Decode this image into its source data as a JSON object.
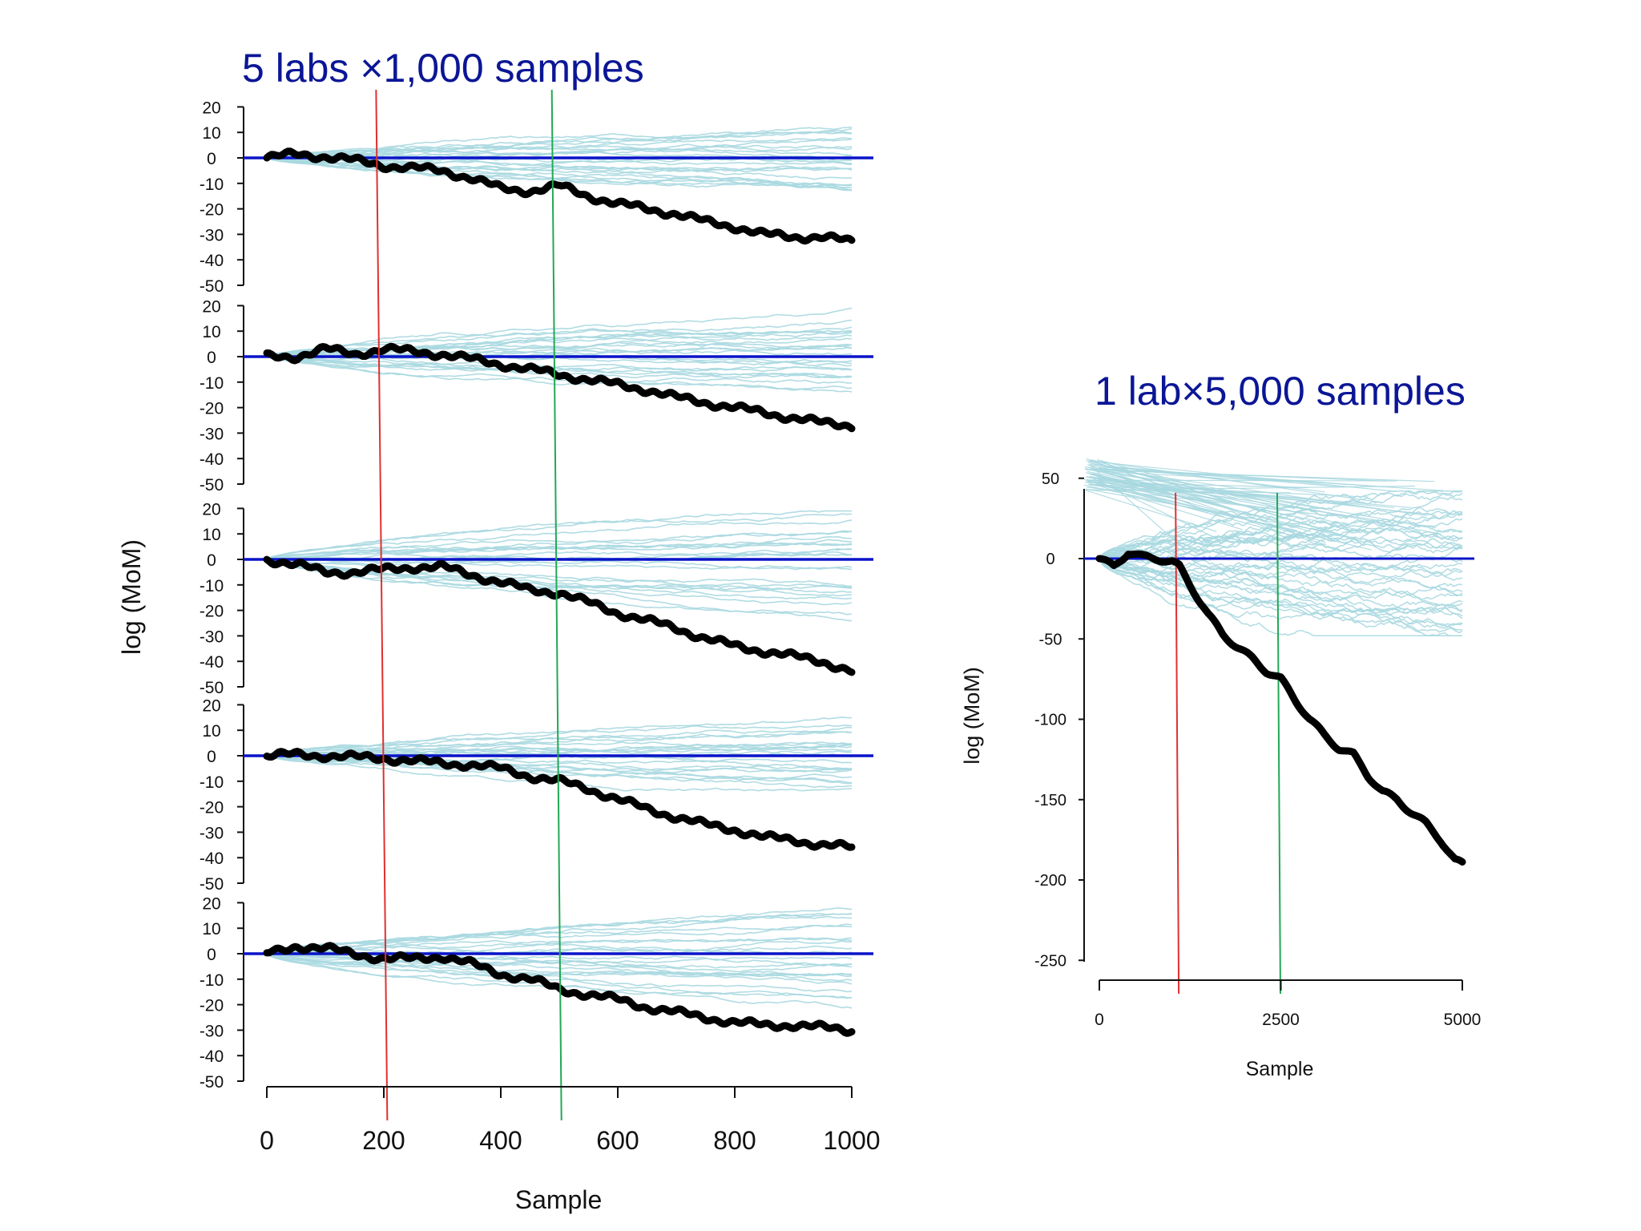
{
  "chart_data": [
    {
      "type": "line",
      "title": "5 labs ×1,000 samples",
      "xlabel": "Sample",
      "ylabel": "log (MoM)",
      "xlim": [
        0,
        1000
      ],
      "xticks": [
        0,
        200,
        400,
        600,
        800,
        1000
      ],
      "yticks": [
        20,
        10,
        0,
        -10,
        -20,
        -30,
        -40,
        -50
      ],
      "ylim": [
        -50,
        20
      ],
      "reference_line": {
        "y": 0,
        "color": "#0a14c8"
      },
      "vlines": [
        {
          "name": "red-line",
          "x": 195,
          "color": "#e03030"
        },
        {
          "name": "green-line",
          "x": 490,
          "color": "#22a855"
        }
      ],
      "series_colors": {
        "simulated": "#a8d8e0",
        "observed": "#000000"
      },
      "simulated_runs_per_panel": 24,
      "panels": [
        {
          "observed": [
            [
              0,
              0
            ],
            [
              50,
              1.5
            ],
            [
              100,
              0.5
            ],
            [
              150,
              -1
            ],
            [
              200,
              -3
            ],
            [
              250,
              -4
            ],
            [
              300,
              -5
            ],
            [
              350,
              -8
            ],
            [
              400,
              -12
            ],
            [
              450,
              -13
            ],
            [
              500,
              -11
            ],
            [
              550,
              -15
            ],
            [
              600,
              -18
            ],
            [
              650,
              -20
            ],
            [
              700,
              -22
            ],
            [
              750,
              -25
            ],
            [
              800,
              -27
            ],
            [
              850,
              -30
            ],
            [
              900,
              -31
            ],
            [
              950,
              -31
            ],
            [
              1000,
              -33
            ]
          ],
          "sim_end_range": [
            -14,
            10
          ]
        },
        {
          "observed": [
            [
              0,
              0
            ],
            [
              50,
              0
            ],
            [
              100,
              3
            ],
            [
              150,
              1
            ],
            [
              200,
              3
            ],
            [
              250,
              2
            ],
            [
              300,
              1
            ],
            [
              350,
              -1
            ],
            [
              400,
              -3
            ],
            [
              450,
              -5
            ],
            [
              500,
              -7
            ],
            [
              550,
              -9
            ],
            [
              600,
              -11
            ],
            [
              650,
              -13
            ],
            [
              700,
              -16
            ],
            [
              750,
              -18
            ],
            [
              800,
              -20
            ],
            [
              850,
              -22
            ],
            [
              900,
              -24
            ],
            [
              950,
              -26
            ],
            [
              1000,
              -27
            ]
          ],
          "sim_end_range": [
            -12,
            16
          ]
        },
        {
          "observed": [
            [
              0,
              0
            ],
            [
              50,
              -2
            ],
            [
              100,
              -5
            ],
            [
              150,
              -5
            ],
            [
              200,
              -4
            ],
            [
              250,
              -3
            ],
            [
              300,
              -3
            ],
            [
              350,
              -6
            ],
            [
              400,
              -9
            ],
            [
              450,
              -12
            ],
            [
              500,
              -13
            ],
            [
              550,
              -17
            ],
            [
              600,
              -21
            ],
            [
              650,
              -24
            ],
            [
              700,
              -27
            ],
            [
              750,
              -31
            ],
            [
              800,
              -34
            ],
            [
              850,
              -36
            ],
            [
              900,
              -38
            ],
            [
              950,
              -40
            ],
            [
              1000,
              -44
            ]
          ],
          "sim_end_range": [
            -20,
            18
          ]
        },
        {
          "observed": [
            [
              0,
              0
            ],
            [
              50,
              0.5
            ],
            [
              100,
              0
            ],
            [
              150,
              -0.5
            ],
            [
              200,
              -1
            ],
            [
              250,
              -2
            ],
            [
              300,
              -3
            ],
            [
              350,
              -3.5
            ],
            [
              400,
              -5
            ],
            [
              450,
              -8
            ],
            [
              500,
              -10
            ],
            [
              550,
              -13
            ],
            [
              600,
              -17
            ],
            [
              650,
              -21
            ],
            [
              700,
              -24
            ],
            [
              750,
              -27
            ],
            [
              800,
              -29
            ],
            [
              850,
              -32
            ],
            [
              900,
              -33
            ],
            [
              950,
              -35
            ],
            [
              1000,
              -36
            ]
          ],
          "sim_end_range": [
            -12,
            14
          ]
        },
        {
          "observed": [
            [
              0,
              0
            ],
            [
              50,
              3
            ],
            [
              100,
              2
            ],
            [
              150,
              0
            ],
            [
              200,
              -2
            ],
            [
              250,
              -2
            ],
            [
              300,
              -1
            ],
            [
              350,
              -4
            ],
            [
              400,
              -8
            ],
            [
              450,
              -10
            ],
            [
              500,
              -14
            ],
            [
              550,
              -16
            ],
            [
              600,
              -18
            ],
            [
              650,
              -21
            ],
            [
              700,
              -23
            ],
            [
              750,
              -25
            ],
            [
              800,
              -27
            ],
            [
              850,
              -28
            ],
            [
              900,
              -28
            ],
            [
              950,
              -29
            ],
            [
              1000,
              -30
            ]
          ],
          "sim_end_range": [
            -20,
            18
          ]
        }
      ]
    },
    {
      "type": "line",
      "title": "1 lab×5,000 samples",
      "xlabel": "Sample",
      "ylabel": "log (MoM)",
      "xlim": [
        0,
        5000
      ],
      "xticks": [
        0,
        2500,
        5000
      ],
      "yticks": [
        50,
        0,
        -50,
        -100,
        -150,
        -200,
        -250
      ],
      "ylim": [
        -250,
        60
      ],
      "reference_line": {
        "y": 0,
        "color": "#0a14c8"
      },
      "vlines": [
        {
          "name": "red-line",
          "x": 1050,
          "color": "#e03030"
        },
        {
          "name": "green-line",
          "x": 2450,
          "color": "#22a855"
        }
      ],
      "observed": [
        [
          0,
          0
        ],
        [
          200,
          -5
        ],
        [
          400,
          4
        ],
        [
          600,
          1
        ],
        [
          800,
          0
        ],
        [
          1000,
          -2
        ],
        [
          1100,
          -5
        ],
        [
          1300,
          -20
        ],
        [
          1500,
          -35
        ],
        [
          1700,
          -47
        ],
        [
          1900,
          -55
        ],
        [
          2100,
          -62
        ],
        [
          2300,
          -70
        ],
        [
          2500,
          -75
        ],
        [
          2700,
          -88
        ],
        [
          2900,
          -100
        ],
        [
          3100,
          -110
        ],
        [
          3300,
          -118
        ],
        [
          3500,
          -122
        ],
        [
          3700,
          -135
        ],
        [
          3900,
          -145
        ],
        [
          4100,
          -150
        ],
        [
          4300,
          -158
        ],
        [
          4500,
          -165
        ],
        [
          4700,
          -175
        ],
        [
          4900,
          -188
        ],
        [
          5000,
          -190
        ]
      ],
      "sim_end_range": [
        -45,
        40
      ]
    }
  ]
}
